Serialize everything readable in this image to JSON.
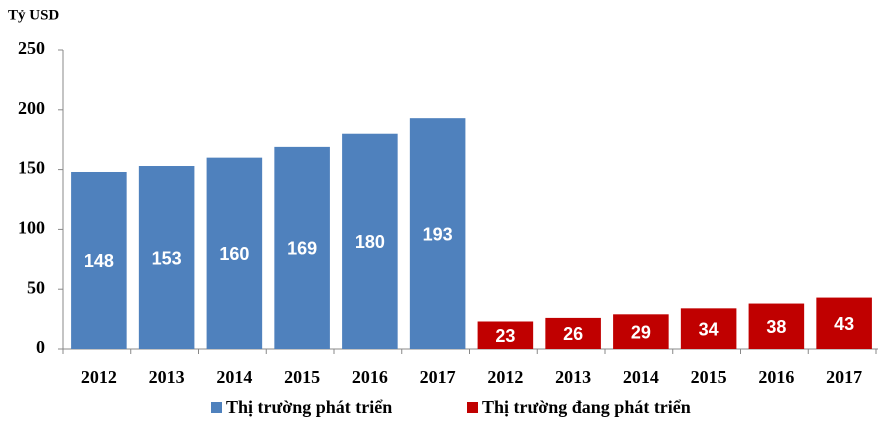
{
  "chart_data": {
    "type": "bar",
    "y_label": "Tỷ USD",
    "categories": [
      "2012",
      "2013",
      "2014",
      "2015",
      "2016",
      "2017",
      "2012",
      "2013",
      "2014",
      "2015",
      "2016",
      "2017"
    ],
    "series": [
      {
        "name": "Thị trường phát triển",
        "color": "#4f81bd",
        "values": [
          148,
          153,
          160,
          169,
          180,
          193,
          null,
          null,
          null,
          null,
          null,
          null
        ]
      },
      {
        "name": "Thị trường đang phát triển",
        "color": "#c00000",
        "values": [
          null,
          null,
          null,
          null,
          null,
          null,
          23,
          26,
          29,
          34,
          38,
          43
        ]
      }
    ],
    "ylim": [
      0,
      250
    ],
    "yticks": [
      0,
      50,
      100,
      150,
      200,
      250
    ],
    "grid": false
  }
}
